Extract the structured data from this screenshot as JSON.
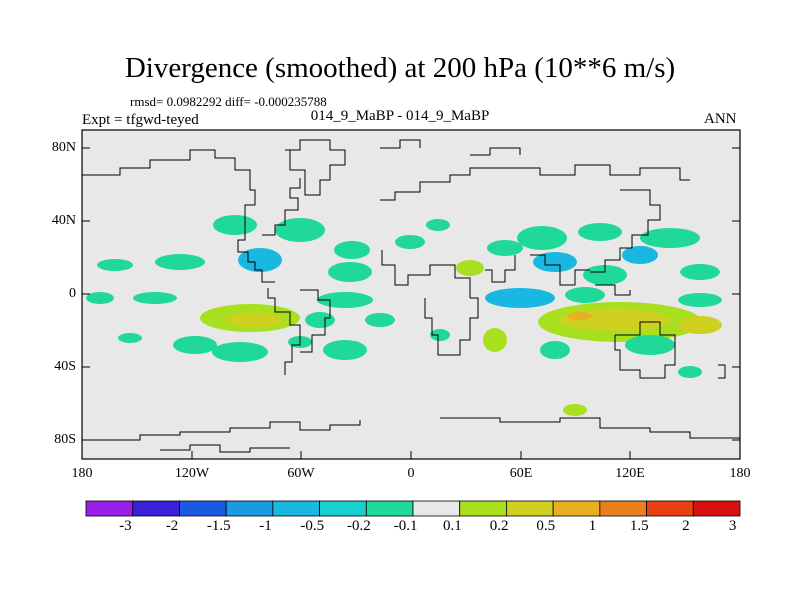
{
  "title": "Divergence (smoothed) at 200 hPa (10**6 m/s)",
  "stats": "rmsd= 0.0982292 diff= -0.000235788",
  "experiment": "Expt = tfgwd-teyed",
  "case": "014_9_MaBP - 014_9_MaBP",
  "season": "ANN",
  "axes": {
    "lat_labels": [
      "80N",
      "40N",
      "0",
      "40S",
      "80S"
    ],
    "lon_labels": [
      "180",
      "120W",
      "60W",
      "0",
      "60E",
      "120E",
      "180"
    ]
  },
  "colorbar": {
    "labels": [
      "-3",
      "-2",
      "-1.5",
      "-1",
      "-0.5",
      "-0.2",
      "-0.1",
      "0.1",
      "0.2",
      "0.5",
      "1",
      "1.5",
      "2",
      "3"
    ],
    "colors": [
      "#9a20e8",
      "#3a20d8",
      "#1a5ae0",
      "#1a9ae0",
      "#18b8e0",
      "#18d0d0",
      "#20d898",
      "#e8e8e8",
      "#a8e020",
      "#d0d020",
      "#e8b020",
      "#e88020",
      "#e84010",
      "#d81010"
    ]
  },
  "colors": {
    "background": "#e8e8e8",
    "positive_light": "#a8e020",
    "positive_medium": "#d0d020",
    "positive_strong": "#e8b020",
    "negative_light": "#20d898",
    "negative_medium": "#18b8e0"
  }
}
